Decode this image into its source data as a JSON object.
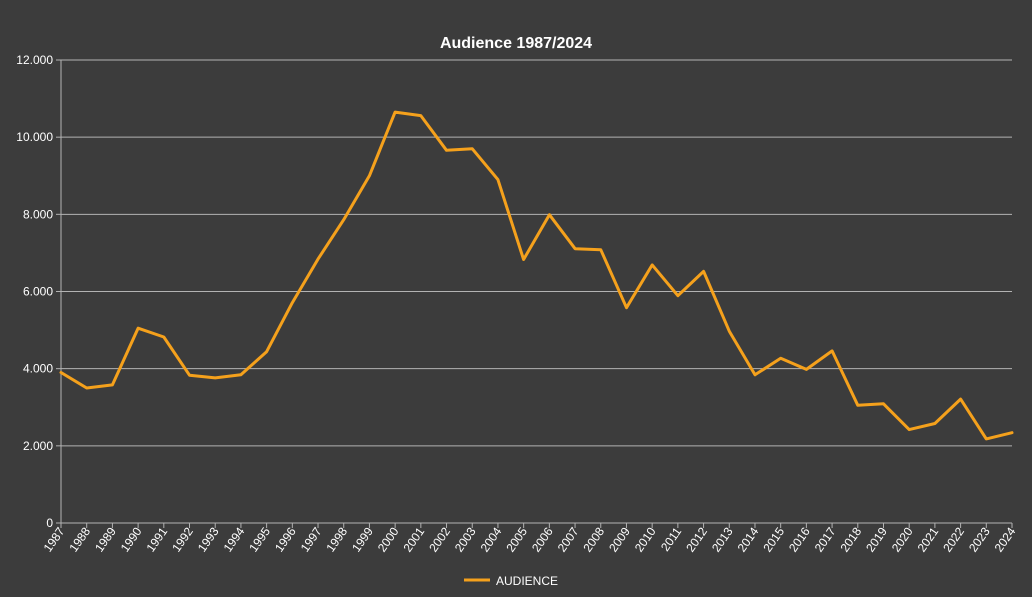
{
  "chart_data": {
    "type": "line",
    "title": "Audience 1987/2024",
    "xlabel": "",
    "ylabel": "",
    "categories": [
      "1987",
      "1988",
      "1989",
      "1990",
      "1991",
      "1992",
      "1993",
      "1994",
      "1995",
      "1996",
      "1997",
      "1998",
      "1999",
      "2000",
      "2001",
      "2002",
      "2003",
      "2004",
      "2005",
      "2006",
      "2007",
      "2008",
      "2009",
      "2010",
      "2011",
      "2012",
      "2013",
      "2014",
      "2015",
      "2016",
      "2017",
      "2018",
      "2019",
      "2020",
      "2021",
      "2022",
      "2023",
      "2024"
    ],
    "series": [
      {
        "name": "AUDIENCE",
        "color": "#f5a11c",
        "values": [
          3900,
          3500,
          3580,
          5050,
          4820,
          3830,
          3760,
          3840,
          4440,
          5710,
          6840,
          7860,
          9000,
          10650,
          10560,
          9660,
          9700,
          8900,
          6830,
          7990,
          7110,
          7080,
          5580,
          6690,
          5890,
          6520,
          4970,
          3840,
          4270,
          3980,
          4460,
          3050,
          3090,
          2420,
          2580,
          3210,
          2180,
          2340
        ]
      }
    ],
    "ylim": [
      0,
      12000
    ],
    "y_ticks": [
      "0",
      "2.000",
      "4.000",
      "6.000",
      "8.000",
      "10.000",
      "12.000"
    ],
    "y_tick_values": [
      0,
      2000,
      4000,
      6000,
      8000,
      10000,
      12000
    ],
    "grid": true,
    "legend_position": "bottom",
    "colors": {
      "background": "#3c3c3c",
      "gridline": "#b3b3b3",
      "text": "#ffffff"
    }
  }
}
